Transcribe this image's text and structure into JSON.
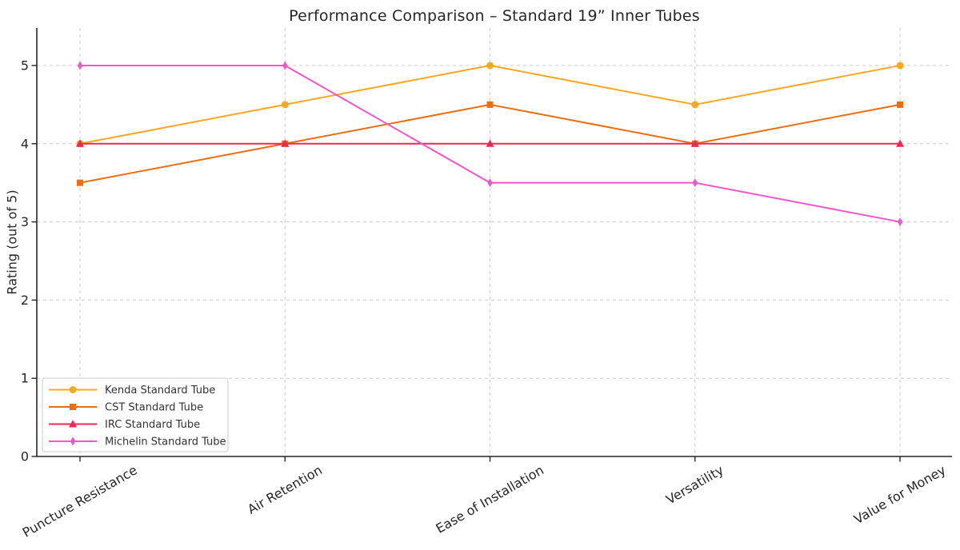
{
  "chart_data": {
    "type": "line",
    "title": "Performance Comparison – Standard 19” Inner Tubes",
    "xlabel": "",
    "ylabel": "Rating (out of 5)",
    "categories": [
      "Puncture Resistance",
      "Air Retention",
      "Ease of Installation",
      "Versatility",
      "Value for Money"
    ],
    "series": [
      {
        "name": "Kenda Standard Tube",
        "marker": "circle",
        "color": "#FFA71E",
        "values": [
          4.0,
          4.5,
          5.0,
          4.5,
          5.0
        ]
      },
      {
        "name": "CST Standard Tube",
        "marker": "square",
        "color": "#EF6C0F",
        "values": [
          3.5,
          4.0,
          4.5,
          4.0,
          4.5
        ]
      },
      {
        "name": "IRC Standard Tube",
        "marker": "triangle",
        "color": "#F02852",
        "values": [
          4.0,
          4.0,
          4.0,
          4.0,
          4.0
        ]
      },
      {
        "name": "Michelin Standard Tube",
        "marker": "diamond",
        "color": "#F655C8",
        "values": [
          5.0,
          5.0,
          3.5,
          3.5,
          3.0
        ]
      }
    ],
    "yticks": [
      0,
      1,
      2,
      3,
      4,
      5
    ],
    "ylim": [
      0,
      5.48
    ],
    "grid": true,
    "grid_style": "dashed",
    "legend_position": "lower left",
    "colors": {
      "axis": "#262626",
      "grid": "#cccccc",
      "legend_text": "#333333",
      "legend_border": "#cccccc"
    }
  }
}
